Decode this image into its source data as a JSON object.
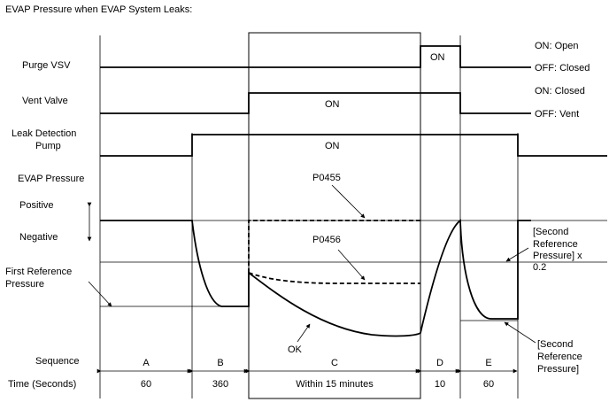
{
  "title": "EVAP Pressure when EVAP System Leaks:",
  "signals": {
    "purge_vsv": {
      "label": "Purge VSV",
      "on_label": "ON",
      "state_on": "ON: Open",
      "state_off": "OFF: Closed"
    },
    "vent_valve": {
      "label": "Vent Valve",
      "on_label": "ON",
      "state_on": "ON: Closed",
      "state_off": "OFF: Vent"
    },
    "leak_detection_pump": {
      "label_line1": "Leak Detection",
      "label_line2": "Pump",
      "on_label": "ON"
    }
  },
  "evap_pressure": {
    "label": "EVAP Pressure",
    "positive": "Positive",
    "negative": "Negative",
    "first_reference_line1": "First Reference",
    "first_reference_line2": "Pressure",
    "dtc_p0455": "P0455",
    "dtc_p0456": "P0456",
    "ok": "OK",
    "second_ref_x02_line1": "[Second",
    "second_ref_x02_line2": "Reference",
    "second_ref_x02_line3": "Pressure] x",
    "second_ref_x02_line4": "0.2",
    "second_ref_line1": "[Second",
    "second_ref_line2": "Reference",
    "second_ref_line3": "Pressure]"
  },
  "sequence": {
    "label": "Sequence",
    "time_label": "Time (Seconds)",
    "steps": [
      {
        "name": "A",
        "time": "60"
      },
      {
        "name": "B",
        "time": "360"
      },
      {
        "name": "C",
        "time": "Within 15 minutes"
      },
      {
        "name": "D",
        "time": "10"
      },
      {
        "name": "E",
        "time": "60"
      }
    ]
  }
}
